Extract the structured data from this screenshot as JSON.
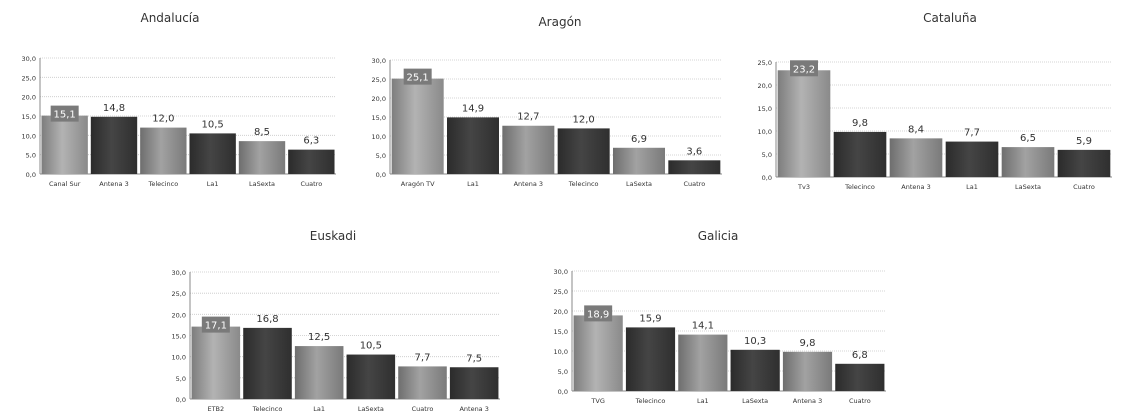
{
  "colors": {
    "highlight_bar": "#9a9a9a",
    "dark_bar": "#3a3a3a",
    "medium_bar": "#8c8c8c",
    "label_box": "#7a7a7a",
    "gridline": "#c8c8c8",
    "axis": "#888888",
    "text": "#333333"
  },
  "chart_data": [
    {
      "type": "bar",
      "title": "Andalucía",
      "categories": [
        "Canal Sur",
        "Antena 3",
        "Telecinco",
        "La1",
        "LaSexta",
        "Cuatro"
      ],
      "values": [
        15.1,
        14.8,
        12.0,
        10.5,
        8.5,
        6.3
      ],
      "value_labels": [
        "15,1",
        "14,8",
        "12,0",
        "10,5",
        "8,5",
        "6,3"
      ],
      "yticks": [
        "0,0",
        "5,0",
        "10,0",
        "15,0",
        "20,0",
        "25,0",
        "30,0"
      ],
      "ylim": [
        0,
        30
      ],
      "grid": true,
      "highlighted_index": 0
    },
    {
      "type": "bar",
      "title": "Aragón",
      "categories": [
        "Aragón TV",
        "La1",
        "Antena 3",
        "Telecinco",
        "LaSexta",
        "Cuatro"
      ],
      "values": [
        25.1,
        14.9,
        12.7,
        12.0,
        6.9,
        3.6
      ],
      "value_labels": [
        "25,1",
        "14,9",
        "12,7",
        "12,0",
        "6,9",
        "3,6"
      ],
      "yticks": [
        "0,0",
        "5,0",
        "10,0",
        "15,0",
        "20,0",
        "25,0",
        "30,0"
      ],
      "ylim": [
        0,
        30
      ],
      "grid": true,
      "highlighted_index": 0
    },
    {
      "type": "bar",
      "title": "Cataluña",
      "categories": [
        "Tv3",
        "Telecinco",
        "Antena 3",
        "La1",
        "LaSexta",
        "Cuatro"
      ],
      "values": [
        23.2,
        9.8,
        8.4,
        7.7,
        6.5,
        5.9
      ],
      "value_labels": [
        "23,2",
        "9,8",
        "8,4",
        "7,7",
        "6,5",
        "5,9"
      ],
      "yticks": [
        "0,0",
        "5,0",
        "10,0",
        "15,0",
        "20,0",
        "25,0"
      ],
      "ylim": [
        0,
        25
      ],
      "grid": true,
      "highlighted_index": 0
    },
    {
      "type": "bar",
      "title": "Euskadi",
      "categories": [
        "ETB2",
        "Telecinco",
        "La1",
        "LaSexta",
        "Cuatro",
        "Antena 3"
      ],
      "values": [
        17.1,
        16.8,
        12.5,
        10.5,
        7.7,
        7.5
      ],
      "value_labels": [
        "17,1",
        "16,8",
        "12,5",
        "10,5",
        "7,7",
        "7,5"
      ],
      "yticks": [
        "0,0",
        "5,0",
        "10,0",
        "15,0",
        "20,0",
        "25,0",
        "30,0"
      ],
      "ylim": [
        0,
        30
      ],
      "grid": true,
      "highlighted_index": 0
    },
    {
      "type": "bar",
      "title": "Galicia",
      "categories": [
        "TVG",
        "Telecinco",
        "La1",
        "LaSexta",
        "Antena 3",
        "Cuatro"
      ],
      "values": [
        18.9,
        15.9,
        14.1,
        10.3,
        9.8,
        6.8
      ],
      "value_labels": [
        "18,9",
        "15,9",
        "14,1",
        "10,3",
        "9,8",
        "6,8"
      ],
      "yticks": [
        "0,0",
        "5,0",
        "10,0",
        "15,0",
        "20,0",
        "25,0",
        "30,0"
      ],
      "ylim": [
        0,
        30
      ],
      "grid": true,
      "highlighted_index": 0
    }
  ]
}
